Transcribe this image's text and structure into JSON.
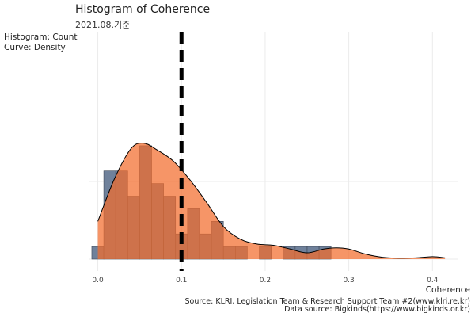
{
  "title": "Histogram of Coherence",
  "subtitle": "2021.08.기준",
  "legend_note": {
    "line1": "Histogram: Count",
    "line2": "Curve: Density"
  },
  "xlabel": "Coherence",
  "caption": {
    "line1": "Source: KLRI, Legislation Team & Research Support Team #2(www.klri.re.kr)",
    "line2": "Data source: Bigkinds(https://www.bigkinds.or.kr)"
  },
  "colors": {
    "histogram": "#6f819b",
    "density": "#f26c2c",
    "vline": "#000000",
    "grid": "#ebebeb"
  },
  "chart_data": {
    "type": "histogram",
    "xlabel": "Coherence",
    "xlim": [
      -0.01,
      0.43
    ],
    "x_ticks": [
      0.0,
      0.1,
      0.2,
      0.3,
      0.4
    ],
    "x_tick_labels": [
      "0.0",
      "0.1",
      "0.2",
      "0.3",
      "0.4"
    ],
    "grid": true,
    "vline": {
      "x": 0.1,
      "style": "dashed"
    },
    "histogram": {
      "bin_width": 0.0143,
      "bins_start": -0.0072,
      "counts": [
        1,
        7,
        7,
        5,
        9,
        6,
        5,
        2,
        4,
        2,
        3,
        1,
        1,
        0,
        1,
        0,
        1,
        1,
        1,
        1,
        0,
        0,
        0,
        0,
        0,
        0,
        0,
        0,
        0,
        0
      ]
    },
    "density": {
      "x": [
        0.0,
        0.02,
        0.04,
        0.055,
        0.07,
        0.09,
        0.11,
        0.13,
        0.15,
        0.17,
        0.19,
        0.21,
        0.23,
        0.25,
        0.27,
        0.285,
        0.3,
        0.32,
        0.34,
        0.36,
        0.38,
        0.4,
        0.415
      ],
      "y": [
        3.0,
        6.4,
        8.8,
        9.2,
        8.7,
        7.8,
        6.3,
        4.5,
        2.6,
        1.6,
        1.2,
        1.1,
        0.8,
        0.5,
        0.8,
        0.9,
        0.8,
        0.4,
        0.15,
        0.08,
        0.1,
        0.2,
        0.1
      ]
    }
  }
}
